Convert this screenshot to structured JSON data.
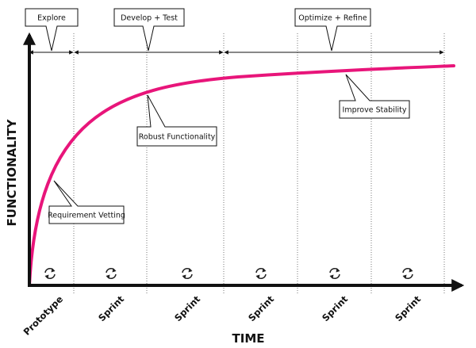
{
  "axes": {
    "y_label": "FUNCTIONALITY",
    "x_label": "TIME"
  },
  "phases": [
    {
      "label": "Explore"
    },
    {
      "label": "Develop + Test"
    },
    {
      "label": "Optimize + Refine"
    }
  ],
  "callouts": [
    {
      "label": "Requirement Vetting"
    },
    {
      "label": "Robust Functionality"
    },
    {
      "label": "Improve Stability"
    }
  ],
  "stages": [
    {
      "label": "Prototype"
    },
    {
      "label": "Sprint"
    },
    {
      "label": "Sprint"
    },
    {
      "label": "Sprint"
    },
    {
      "label": "Sprint"
    },
    {
      "label": "Sprint"
    }
  ],
  "icons": {
    "iteration": "cycle-arrows-icon"
  },
  "colors": {
    "curve": "#e8157a",
    "ink": "#111111",
    "guide": "#777777"
  }
}
